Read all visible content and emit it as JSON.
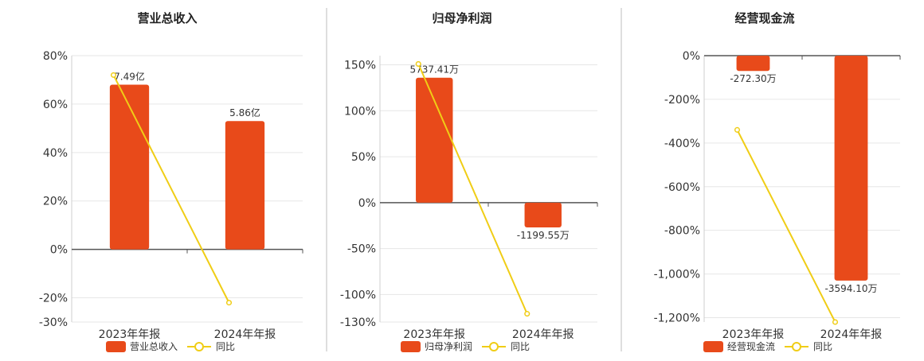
{
  "colors": {
    "bar": "#e84a1a",
    "line": "#f0cd16",
    "grid": "#e6e6e6",
    "axis": "#555555",
    "divider": "#bdbdbd",
    "title": "#222222",
    "tick": "#333333"
  },
  "chart_data": [
    {
      "type": "bar",
      "title": "营业总收入",
      "categories": [
        "2023年年报",
        "2024年年报"
      ],
      "series": [
        {
          "name": "营业总收入",
          "type": "bar",
          "values": [
            68,
            53
          ],
          "labels": [
            "7.49亿",
            "5.86亿"
          ]
        },
        {
          "name": "同比",
          "type": "line",
          "values": [
            72,
            -22
          ]
        }
      ],
      "yticks": [
        80,
        60,
        40,
        20,
        0,
        -20,
        -30
      ],
      "ytick_labels": [
        "80%",
        "60%",
        "40%",
        "20%",
        "0%",
        "-20%",
        "-30%"
      ],
      "ylim": [
        -30,
        80
      ],
      "grid": true,
      "legend_position": "bottom"
    },
    {
      "type": "bar",
      "title": "归母净利润",
      "categories": [
        "2023年年报",
        "2024年年报"
      ],
      "series": [
        {
          "name": "归母净利润",
          "type": "bar",
          "values": [
            136,
            -27
          ],
          "labels": [
            "5737.41万",
            "-1199.55万"
          ]
        },
        {
          "name": "同比",
          "type": "line",
          "values": [
            151,
            -121
          ]
        }
      ],
      "yticks": [
        150,
        100,
        50,
        0,
        -50,
        -100,
        -130
      ],
      "ytick_labels": [
        "150%",
        "100%",
        "50%",
        "0%",
        "-50%",
        "-100%",
        "-130%"
      ],
      "ylim": [
        -130,
        160
      ],
      "grid": true,
      "legend_position": "bottom"
    },
    {
      "type": "bar",
      "title": "经营现金流",
      "categories": [
        "2023年年报",
        "2024年年报"
      ],
      "series": [
        {
          "name": "经营现金流",
          "type": "bar",
          "values": [
            -70,
            -1030
          ],
          "labels": [
            "-272.30万",
            "-3594.10万"
          ]
        },
        {
          "name": "同比",
          "type": "line",
          "values": [
            -340,
            -1220
          ]
        }
      ],
      "yticks": [
        0,
        -200,
        -400,
        -600,
        -800,
        -1000,
        -1200
      ],
      "ytick_labels": [
        "0%",
        "-200%",
        "-400%",
        "-600%",
        "-800%",
        "-1,000%",
        "-1,200%"
      ],
      "ylim": [
        -1220,
        0
      ],
      "grid": true,
      "legend_position": "bottom"
    }
  ]
}
